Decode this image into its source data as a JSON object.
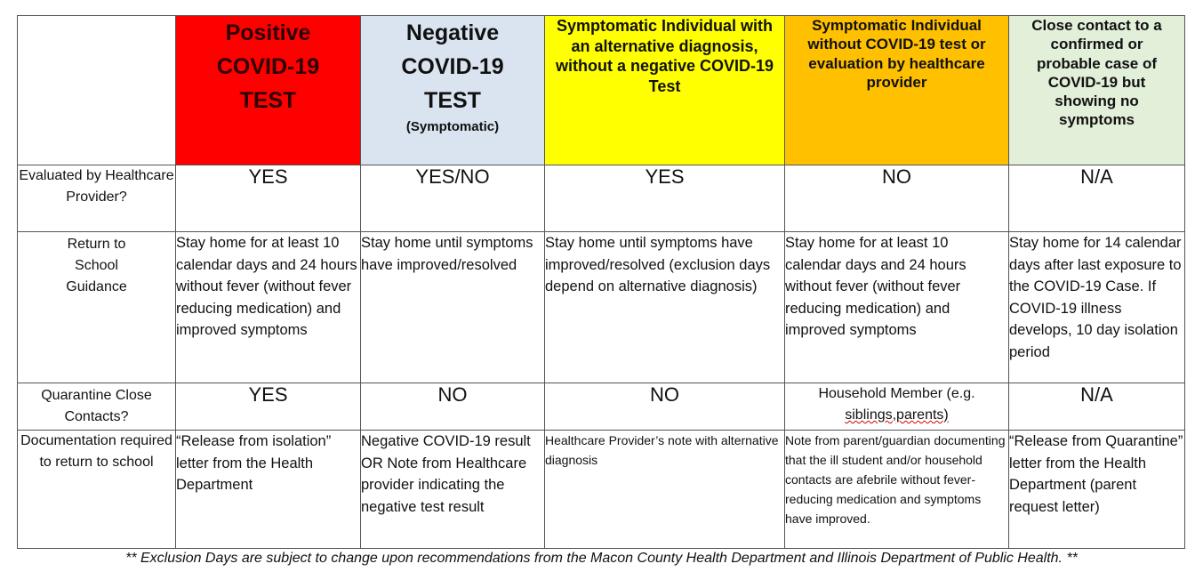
{
  "header": {
    "positive": {
      "line1": "Positive",
      "line2": "COVID-19",
      "line3": "TEST"
    },
    "negative": {
      "line1": "Negative",
      "line2": "COVID-19",
      "line3": "TEST",
      "sub": "(Symptomatic)"
    },
    "alt_diagnosis": "Symptomatic Individual with an alternative diagnosis, without a negative COVID-19 Test",
    "no_test": "Symptomatic Individual without COVID-19 test or evaluation by healthcare provider",
    "close_contact": "Close contact to a confirmed or probable case of COVID-19 but showing no symptoms"
  },
  "colors": {
    "positive": "#fe0000",
    "negative": "#dae4f1",
    "alt_diagnosis": "#ffff00",
    "no_test": "#ffc000",
    "close_contact": "#e2efd9"
  },
  "rows": {
    "evaluated": {
      "label": "Evaluated by Healthcare Provider?",
      "values": [
        "YES",
        "YES/NO",
        "YES",
        "NO",
        "N/A"
      ]
    },
    "return": {
      "label": "Return to School Guidance",
      "values": [
        "Stay home for at least 10 calendar days and 24 hours without fever (without fever reducing medication) and improved symptoms",
        "Stay home until symptoms have improved/resolved",
        "Stay home until symptoms have improved/resolved (exclusion days depend on alternative diagnosis)",
        "Stay home for at least 10 calendar days and 24 hours without fever (without fever reducing medication) and improved symptoms",
        "Stay home for 14 calendar days after last exposure to the COVID-19 Case.  If COVID-19 illness develops, 10 day isolation period"
      ]
    },
    "quarantine": {
      "label": "Quarantine Close Contacts?",
      "values": [
        "YES",
        "NO",
        "NO",
        "Household Member (e.g.",
        "N/A"
      ],
      "household_line2": "siblings,parents)"
    },
    "documentation": {
      "label": "Documentation required to return to school",
      "values": [
        "“Release from isolation” letter from the Health Department",
        "Negative COVID-19 result OR Note from Healthcare provider indicating the negative test result",
        "Healthcare Provider’s note with alternative diagnosis",
        "Note from parent/guardian documenting that the ill student and/or household contacts are afebrile without fever-reducing medication and symptoms have improved.",
        "“Release from Quarantine” letter from the Health Department (parent request letter)"
      ]
    }
  },
  "footnote": "** Exclusion Days are subject to change upon recommendations from the Macon County Health Department and Illinois Department of Public Health. **"
}
